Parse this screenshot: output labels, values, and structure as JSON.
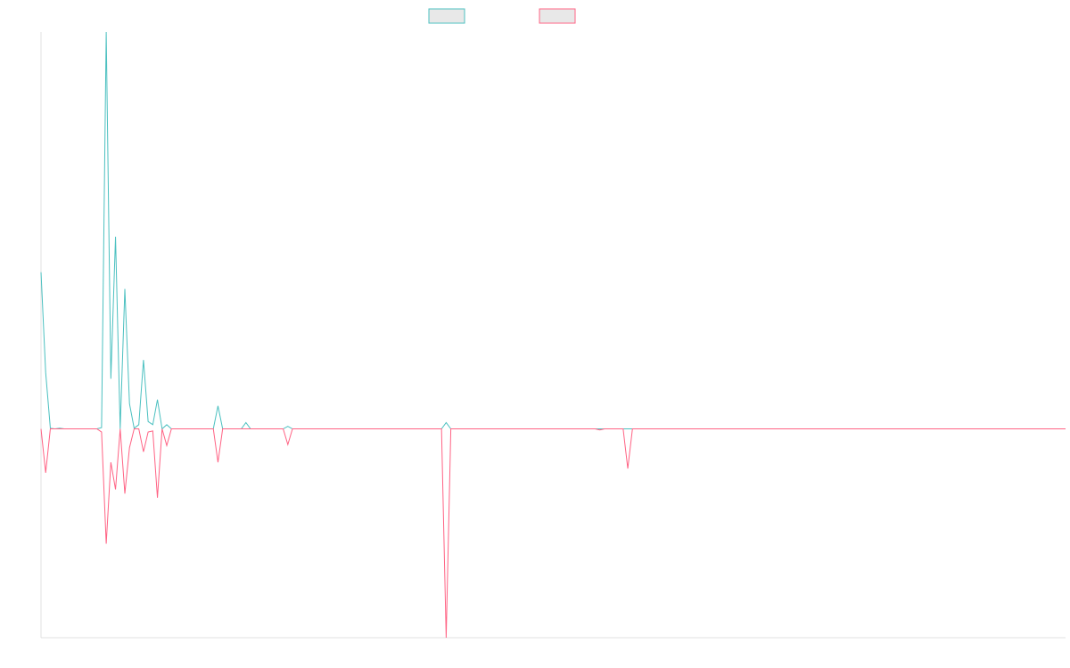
{
  "chart_data": {
    "type": "line",
    "title": "",
    "xlabel": "",
    "ylabel": "",
    "grid": false,
    "legend_position": "top-center",
    "x_count": 221,
    "ylim": [
      -100,
      190
    ],
    "series": [
      {
        "name": "",
        "color": "#4bc0c0",
        "legend_fill": "#e8e8e8",
        "points": [
          [
            0,
            75
          ],
          [
            1,
            27
          ],
          [
            2,
            0.3
          ],
          [
            3,
            0
          ],
          [
            4,
            0.3
          ],
          [
            5,
            0
          ],
          [
            6,
            0
          ],
          [
            7,
            0
          ],
          [
            8,
            0
          ],
          [
            9,
            0
          ],
          [
            10,
            0
          ],
          [
            11,
            0
          ],
          [
            12,
            0
          ],
          [
            13,
            0.6
          ],
          [
            14,
            190
          ],
          [
            15,
            24
          ],
          [
            16,
            92
          ],
          [
            17,
            0
          ],
          [
            18,
            67
          ],
          [
            19,
            12
          ],
          [
            20,
            0.3
          ],
          [
            21,
            2
          ],
          [
            22,
            33
          ],
          [
            23,
            3.5
          ],
          [
            24,
            2
          ],
          [
            25,
            14
          ],
          [
            26,
            0
          ],
          [
            27,
            2
          ],
          [
            28,
            0
          ],
          [
            29,
            0
          ],
          [
            30,
            0
          ],
          [
            31,
            0
          ],
          [
            32,
            0
          ],
          [
            33,
            0
          ],
          [
            34,
            0
          ],
          [
            35,
            0
          ],
          [
            36,
            0
          ],
          [
            37,
            0
          ],
          [
            38,
            11
          ],
          [
            39,
            0
          ],
          [
            40,
            0
          ],
          [
            41,
            0
          ],
          [
            42,
            0
          ],
          [
            43,
            0
          ],
          [
            44,
            3
          ],
          [
            45,
            0
          ],
          [
            46,
            0
          ],
          [
            47,
            0
          ],
          [
            48,
            0
          ],
          [
            49,
            0
          ],
          [
            50,
            0
          ],
          [
            51,
            0
          ],
          [
            52,
            0
          ],
          [
            53,
            1.2
          ],
          [
            54,
            0
          ],
          [
            55,
            0
          ],
          [
            56,
            0
          ],
          [
            57,
            0
          ],
          [
            58,
            0
          ],
          [
            59,
            0
          ],
          [
            60,
            0
          ],
          [
            61,
            0
          ],
          [
            62,
            0
          ],
          [
            63,
            0
          ],
          [
            64,
            0
          ],
          [
            65,
            0
          ],
          [
            66,
            0
          ],
          [
            67,
            0
          ],
          [
            68,
            0
          ],
          [
            69,
            0
          ],
          [
            70,
            0
          ],
          [
            71,
            0
          ],
          [
            72,
            0
          ],
          [
            73,
            0
          ],
          [
            74,
            0
          ],
          [
            75,
            0
          ],
          [
            76,
            0
          ],
          [
            77,
            0
          ],
          [
            78,
            0
          ],
          [
            79,
            0
          ],
          [
            80,
            0
          ],
          [
            81,
            0
          ],
          [
            82,
            0
          ],
          [
            83,
            0
          ],
          [
            84,
            0
          ],
          [
            85,
            0
          ],
          [
            86,
            0
          ],
          [
            87,
            3
          ],
          [
            88,
            0
          ],
          [
            89,
            0
          ],
          [
            90,
            0
          ],
          [
            91,
            0
          ],
          [
            220,
            0
          ]
        ]
      },
      {
        "name": "",
        "color": "#ff6384",
        "legend_fill": "#e8e8e8",
        "points": [
          [
            0,
            0
          ],
          [
            1,
            -21
          ],
          [
            2,
            0
          ],
          [
            3,
            0
          ],
          [
            4,
            0
          ],
          [
            5,
            0
          ],
          [
            6,
            0
          ],
          [
            7,
            0
          ],
          [
            8,
            0
          ],
          [
            9,
            0
          ],
          [
            10,
            0
          ],
          [
            11,
            0
          ],
          [
            12,
            0
          ],
          [
            13,
            -1.5
          ],
          [
            14,
            -55
          ],
          [
            15,
            -16
          ],
          [
            16,
            -29
          ],
          [
            17,
            0
          ],
          [
            18,
            -31
          ],
          [
            19,
            -9
          ],
          [
            20,
            0
          ],
          [
            21,
            0
          ],
          [
            22,
            -11
          ],
          [
            23,
            -1.5
          ],
          [
            24,
            -1
          ],
          [
            25,
            -33
          ],
          [
            26,
            0
          ],
          [
            27,
            -8
          ],
          [
            28,
            0
          ],
          [
            29,
            0
          ],
          [
            30,
            0
          ],
          [
            31,
            0
          ],
          [
            32,
            0
          ],
          [
            33,
            0
          ],
          [
            34,
            0
          ],
          [
            35,
            0
          ],
          [
            36,
            0
          ],
          [
            37,
            0
          ],
          [
            38,
            -16
          ],
          [
            39,
            0
          ],
          [
            40,
            0
          ],
          [
            41,
            0
          ],
          [
            42,
            0
          ],
          [
            43,
            0
          ],
          [
            44,
            0
          ],
          [
            45,
            0
          ],
          [
            46,
            0
          ],
          [
            47,
            0
          ],
          [
            48,
            0
          ],
          [
            49,
            0
          ],
          [
            50,
            0
          ],
          [
            51,
            0
          ],
          [
            52,
            0
          ],
          [
            53,
            -7.5
          ],
          [
            54,
            0
          ],
          [
            55,
            0
          ],
          [
            56,
            0
          ],
          [
            57,
            0
          ],
          [
            58,
            0
          ],
          [
            59,
            0
          ],
          [
            60,
            0
          ],
          [
            61,
            0
          ],
          [
            62,
            0
          ],
          [
            63,
            0
          ],
          [
            64,
            0
          ],
          [
            65,
            0
          ],
          [
            66,
            0
          ],
          [
            67,
            0
          ],
          [
            68,
            0
          ],
          [
            69,
            0
          ],
          [
            70,
            0
          ],
          [
            71,
            0
          ],
          [
            72,
            0
          ],
          [
            73,
            0
          ],
          [
            74,
            0
          ],
          [
            75,
            0
          ],
          [
            76,
            0
          ],
          [
            77,
            0
          ],
          [
            78,
            0
          ],
          [
            79,
            0
          ],
          [
            80,
            0
          ],
          [
            81,
            0
          ],
          [
            82,
            0
          ],
          [
            83,
            0
          ],
          [
            84,
            0
          ],
          [
            85,
            0
          ],
          [
            86,
            0
          ],
          [
            87,
            -100
          ],
          [
            88,
            0
          ],
          [
            89,
            0
          ],
          [
            90,
            0
          ],
          [
            91,
            0
          ],
          [
            92,
            0
          ],
          [
            93,
            0
          ],
          [
            94,
            0
          ],
          [
            95,
            0
          ],
          [
            96,
            0
          ],
          [
            97,
            0
          ],
          [
            98,
            0
          ],
          [
            99,
            0
          ],
          [
            100,
            0
          ],
          [
            101,
            0
          ],
          [
            102,
            0
          ],
          [
            103,
            0
          ],
          [
            104,
            0
          ],
          [
            105,
            0
          ],
          [
            106,
            0
          ],
          [
            107,
            0
          ],
          [
            108,
            0
          ],
          [
            109,
            0
          ],
          [
            110,
            0
          ],
          [
            111,
            0
          ],
          [
            112,
            0
          ],
          [
            113,
            0
          ],
          [
            114,
            0
          ],
          [
            115,
            0
          ],
          [
            116,
            0
          ],
          [
            117,
            0
          ],
          [
            118,
            0
          ],
          [
            119,
            0
          ],
          [
            120,
            -0.5
          ],
          [
            121,
            0
          ],
          [
            122,
            0
          ],
          [
            123,
            0
          ],
          [
            124,
            0
          ],
          [
            125,
            0
          ],
          [
            126,
            -19
          ],
          [
            127,
            0
          ],
          [
            128,
            0
          ],
          [
            129,
            0
          ],
          [
            130,
            0
          ],
          [
            220,
            0
          ]
        ]
      }
    ]
  },
  "colors": {
    "axis": "#e0e0e0",
    "background": "#ffffff"
  }
}
